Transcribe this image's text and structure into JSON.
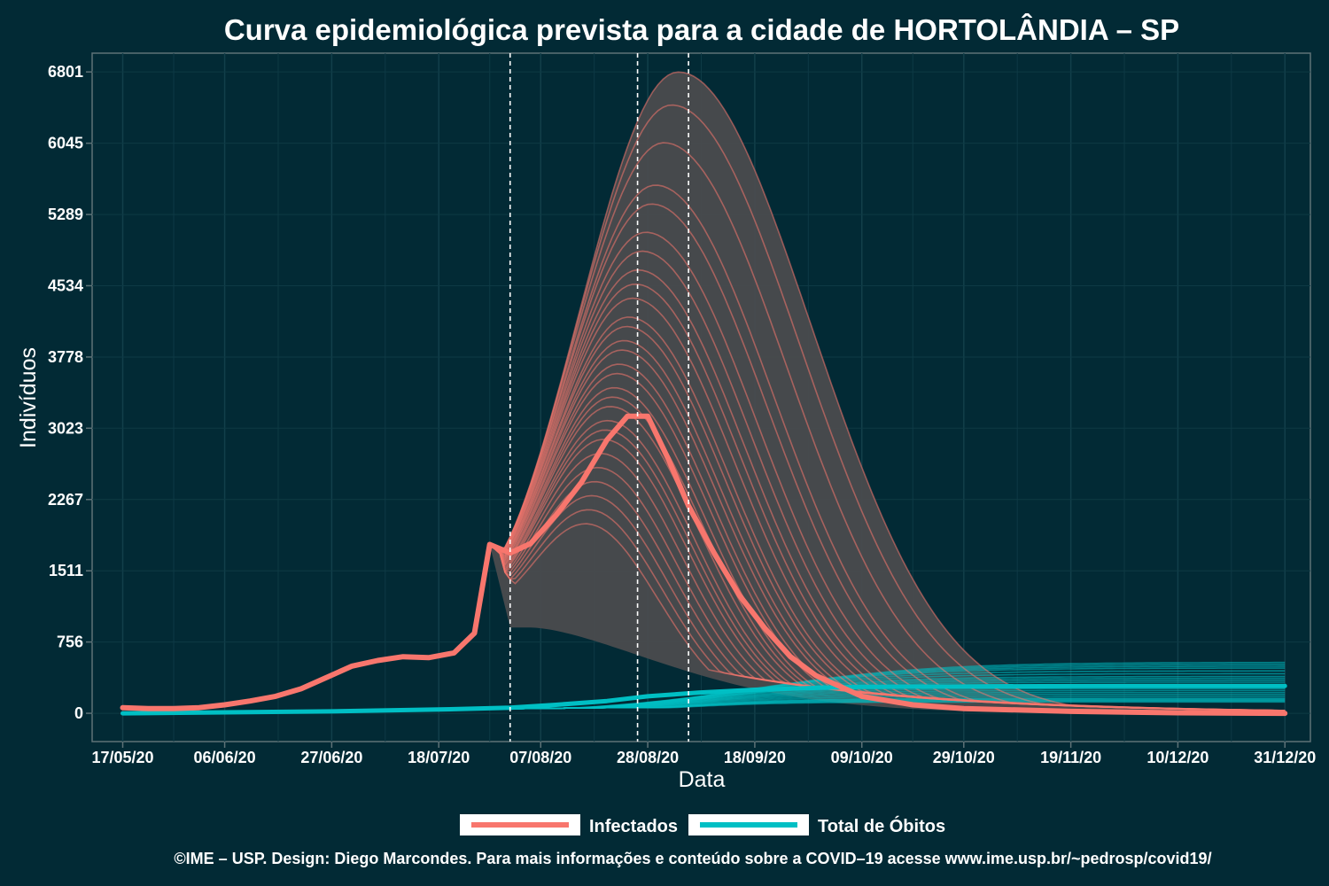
{
  "chart_data": {
    "type": "line",
    "title": "Curva epidemiológica prevista para a cidade de HORTOLÂNDIA – SP",
    "xlabel": "Data",
    "ylabel": "Indivíduos",
    "x_range": [
      "2020-05-11",
      "2021-01-05"
    ],
    "ylim": [
      -300,
      7000
    ],
    "x_ticks": [
      "2020-05-17",
      "2020-06-06",
      "2020-06-27",
      "2020-07-18",
      "2020-08-07",
      "2020-08-28",
      "2020-09-18",
      "2020-10-09",
      "2020-10-29",
      "2020-11-19",
      "2020-12-10",
      "2020-12-31"
    ],
    "x_tick_labels": [
      "17/05/20",
      "06/06/20",
      "27/06/20",
      "18/07/20",
      "07/08/20",
      "28/08/20",
      "18/09/20",
      "09/10/20",
      "29/10/20",
      "19/11/20",
      "10/12/20",
      "31/12/20"
    ],
    "y_ticks": [
      0,
      756,
      1511,
      2267,
      3023,
      3778,
      4534,
      5289,
      6045,
      6801
    ],
    "y_tick_labels": [
      "0",
      "756",
      "1511",
      "2267",
      "3023",
      "3778",
      "4534",
      "5289",
      "6045",
      "6801"
    ],
    "vlines": [
      "2020-08-01",
      "2020-08-26",
      "2020-09-05"
    ],
    "grid": true,
    "legend_position": "bottom",
    "series": [
      {
        "name": "Infectados",
        "color": "#f8766d",
        "x": [
          "2020-05-17",
          "2020-05-22",
          "2020-05-27",
          "2020-06-01",
          "2020-06-06",
          "2020-06-11",
          "2020-06-16",
          "2020-06-21",
          "2020-06-26",
          "2020-07-01",
          "2020-07-06",
          "2020-07-11",
          "2020-07-16",
          "2020-07-21",
          "2020-07-25",
          "2020-07-28",
          "2020-08-01",
          "2020-08-05",
          "2020-08-10",
          "2020-08-15",
          "2020-08-20",
          "2020-08-24",
          "2020-08-28",
          "2020-09-01",
          "2020-09-05",
          "2020-09-10",
          "2020-09-15",
          "2020-09-20",
          "2020-09-25",
          "2020-09-30",
          "2020-10-09",
          "2020-10-19",
          "2020-10-29",
          "2020-11-19",
          "2020-12-10",
          "2020-12-31"
        ],
        "values": [
          60,
          50,
          50,
          60,
          90,
          130,
          180,
          260,
          380,
          500,
          560,
          600,
          590,
          640,
          850,
          1790,
          1700,
          1800,
          2100,
          2450,
          2900,
          3150,
          3150,
          2700,
          2200,
          1700,
          1250,
          900,
          600,
          400,
          180,
          90,
          50,
          20,
          5,
          0
        ]
      },
      {
        "name": "Total de Óbitos",
        "color": "#00bfc4",
        "x": [
          "2020-05-17",
          "2020-06-06",
          "2020-06-27",
          "2020-07-18",
          "2020-08-01",
          "2020-08-10",
          "2020-08-20",
          "2020-08-28",
          "2020-09-07",
          "2020-09-18",
          "2020-10-01",
          "2020-10-09",
          "2020-10-29",
          "2020-11-19",
          "2020-12-10",
          "2020-12-31"
        ],
        "values": [
          0,
          10,
          20,
          40,
          60,
          90,
          130,
          180,
          220,
          250,
          270,
          280,
          285,
          288,
          290,
          290
        ]
      }
    ],
    "ensemble": {
      "infectados_peaks": [
        6800,
        6450,
        6050,
        5600,
        5400,
        5100,
        4900,
        4700,
        4550,
        4400,
        4200,
        4100,
        3950,
        3850,
        3700,
        3600,
        3450,
        3350,
        3250,
        3100,
        3000,
        2900,
        2750,
        2600,
        2450,
        2300,
        2150,
        2000
      ],
      "obitos_plateaus": [
        540,
        520,
        500,
        480,
        450,
        420,
        390,
        370,
        350,
        330,
        300,
        280,
        260,
        240,
        220,
        200,
        180,
        160,
        150,
        140,
        130,
        120
      ],
      "band_lower": 910
    }
  },
  "caption": "©IME – USP. Design: Diego Marcondes. Para mais informações e conteúdo sobre a COVID–19 acesse www.ime.usp.br/~pedrosp/covid19/"
}
